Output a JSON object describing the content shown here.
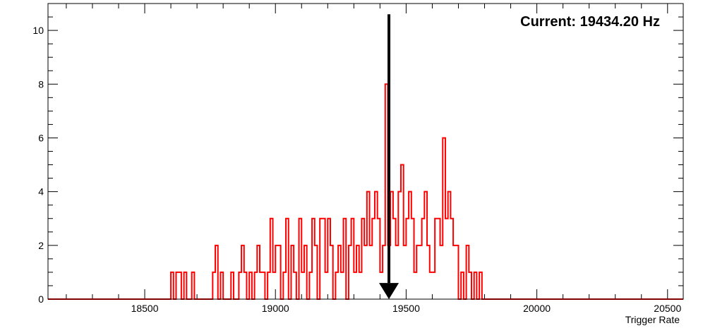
{
  "chart_data": {
    "type": "bar",
    "xlabel": "Trigger Rate",
    "ylabel": "",
    "xlim": [
      18130,
      20560
    ],
    "ylim": [
      0,
      11
    ],
    "x_ticks": [
      18500,
      19000,
      19500,
      20000,
      20500
    ],
    "y_ticks": [
      0,
      2,
      4,
      6,
      8,
      10
    ],
    "annotation": "Current: 19434.20 Hz",
    "marker_value": 19434.2,
    "colors": {
      "histogram": "#ff0000",
      "marker": "#000000",
      "frame": "#000000"
    },
    "bin_width": 10,
    "bins": [
      [
        18600,
        1
      ],
      [
        18610,
        0
      ],
      [
        18620,
        1
      ],
      [
        18630,
        1
      ],
      [
        18640,
        0
      ],
      [
        18650,
        1
      ],
      [
        18680,
        1
      ],
      [
        18690,
        0
      ],
      [
        18760,
        1
      ],
      [
        18770,
        2
      ],
      [
        18780,
        0
      ],
      [
        18790,
        1
      ],
      [
        18800,
        0
      ],
      [
        18830,
        1
      ],
      [
        18840,
        0
      ],
      [
        18860,
        1
      ],
      [
        18870,
        2
      ],
      [
        18880,
        1
      ],
      [
        18890,
        0
      ],
      [
        18900,
        1
      ],
      [
        18910,
        0
      ],
      [
        18920,
        1
      ],
      [
        18930,
        2
      ],
      [
        18940,
        1
      ],
      [
        18950,
        1
      ],
      [
        18960,
        0
      ],
      [
        18970,
        1
      ],
      [
        18980,
        3
      ],
      [
        18990,
        1
      ],
      [
        19000,
        2
      ],
      [
        19010,
        2
      ],
      [
        19020,
        0
      ],
      [
        19030,
        1
      ],
      [
        19040,
        3
      ],
      [
        19050,
        0
      ],
      [
        19060,
        2
      ],
      [
        19070,
        1
      ],
      [
        19080,
        0
      ],
      [
        19090,
        3
      ],
      [
        19100,
        1
      ],
      [
        19110,
        2
      ],
      [
        19120,
        0
      ],
      [
        19130,
        1
      ],
      [
        19140,
        3
      ],
      [
        19150,
        2
      ],
      [
        19160,
        0
      ],
      [
        19170,
        3
      ],
      [
        19180,
        3
      ],
      [
        19190,
        1
      ],
      [
        19200,
        3
      ],
      [
        19210,
        2
      ],
      [
        19220,
        0
      ],
      [
        19230,
        1
      ],
      [
        19240,
        2
      ],
      [
        19250,
        1
      ],
      [
        19260,
        3
      ],
      [
        19270,
        0
      ],
      [
        19280,
        2
      ],
      [
        19290,
        3
      ],
      [
        19300,
        1
      ],
      [
        19310,
        2
      ],
      [
        19320,
        1
      ],
      [
        19330,
        3
      ],
      [
        19340,
        2
      ],
      [
        19350,
        4
      ],
      [
        19360,
        2
      ],
      [
        19370,
        3
      ],
      [
        19380,
        4
      ],
      [
        19390,
        3
      ],
      [
        19400,
        1
      ],
      [
        19410,
        2
      ],
      [
        19420,
        8
      ],
      [
        19430,
        2
      ],
      [
        19440,
        4
      ],
      [
        19450,
        3
      ],
      [
        19460,
        2
      ],
      [
        19470,
        4
      ],
      [
        19480,
        5
      ],
      [
        19490,
        2
      ],
      [
        19500,
        3
      ],
      [
        19510,
        4
      ],
      [
        19520,
        3
      ],
      [
        19530,
        1
      ],
      [
        19540,
        2
      ],
      [
        19550,
        2
      ],
      [
        19560,
        3
      ],
      [
        19570,
        4
      ],
      [
        19580,
        2
      ],
      [
        19590,
        1
      ],
      [
        19600,
        1
      ],
      [
        19610,
        3
      ],
      [
        19620,
        3
      ],
      [
        19630,
        2
      ],
      [
        19640,
        6
      ],
      [
        19650,
        3
      ],
      [
        19660,
        4
      ],
      [
        19670,
        3
      ],
      [
        19680,
        2
      ],
      [
        19690,
        2
      ],
      [
        19700,
        0
      ],
      [
        19710,
        1
      ],
      [
        19720,
        0
      ],
      [
        19730,
        2
      ],
      [
        19740,
        1
      ],
      [
        19750,
        0
      ],
      [
        19760,
        1
      ],
      [
        19770,
        0
      ],
      [
        19780,
        1
      ],
      [
        19790,
        0
      ]
    ]
  }
}
